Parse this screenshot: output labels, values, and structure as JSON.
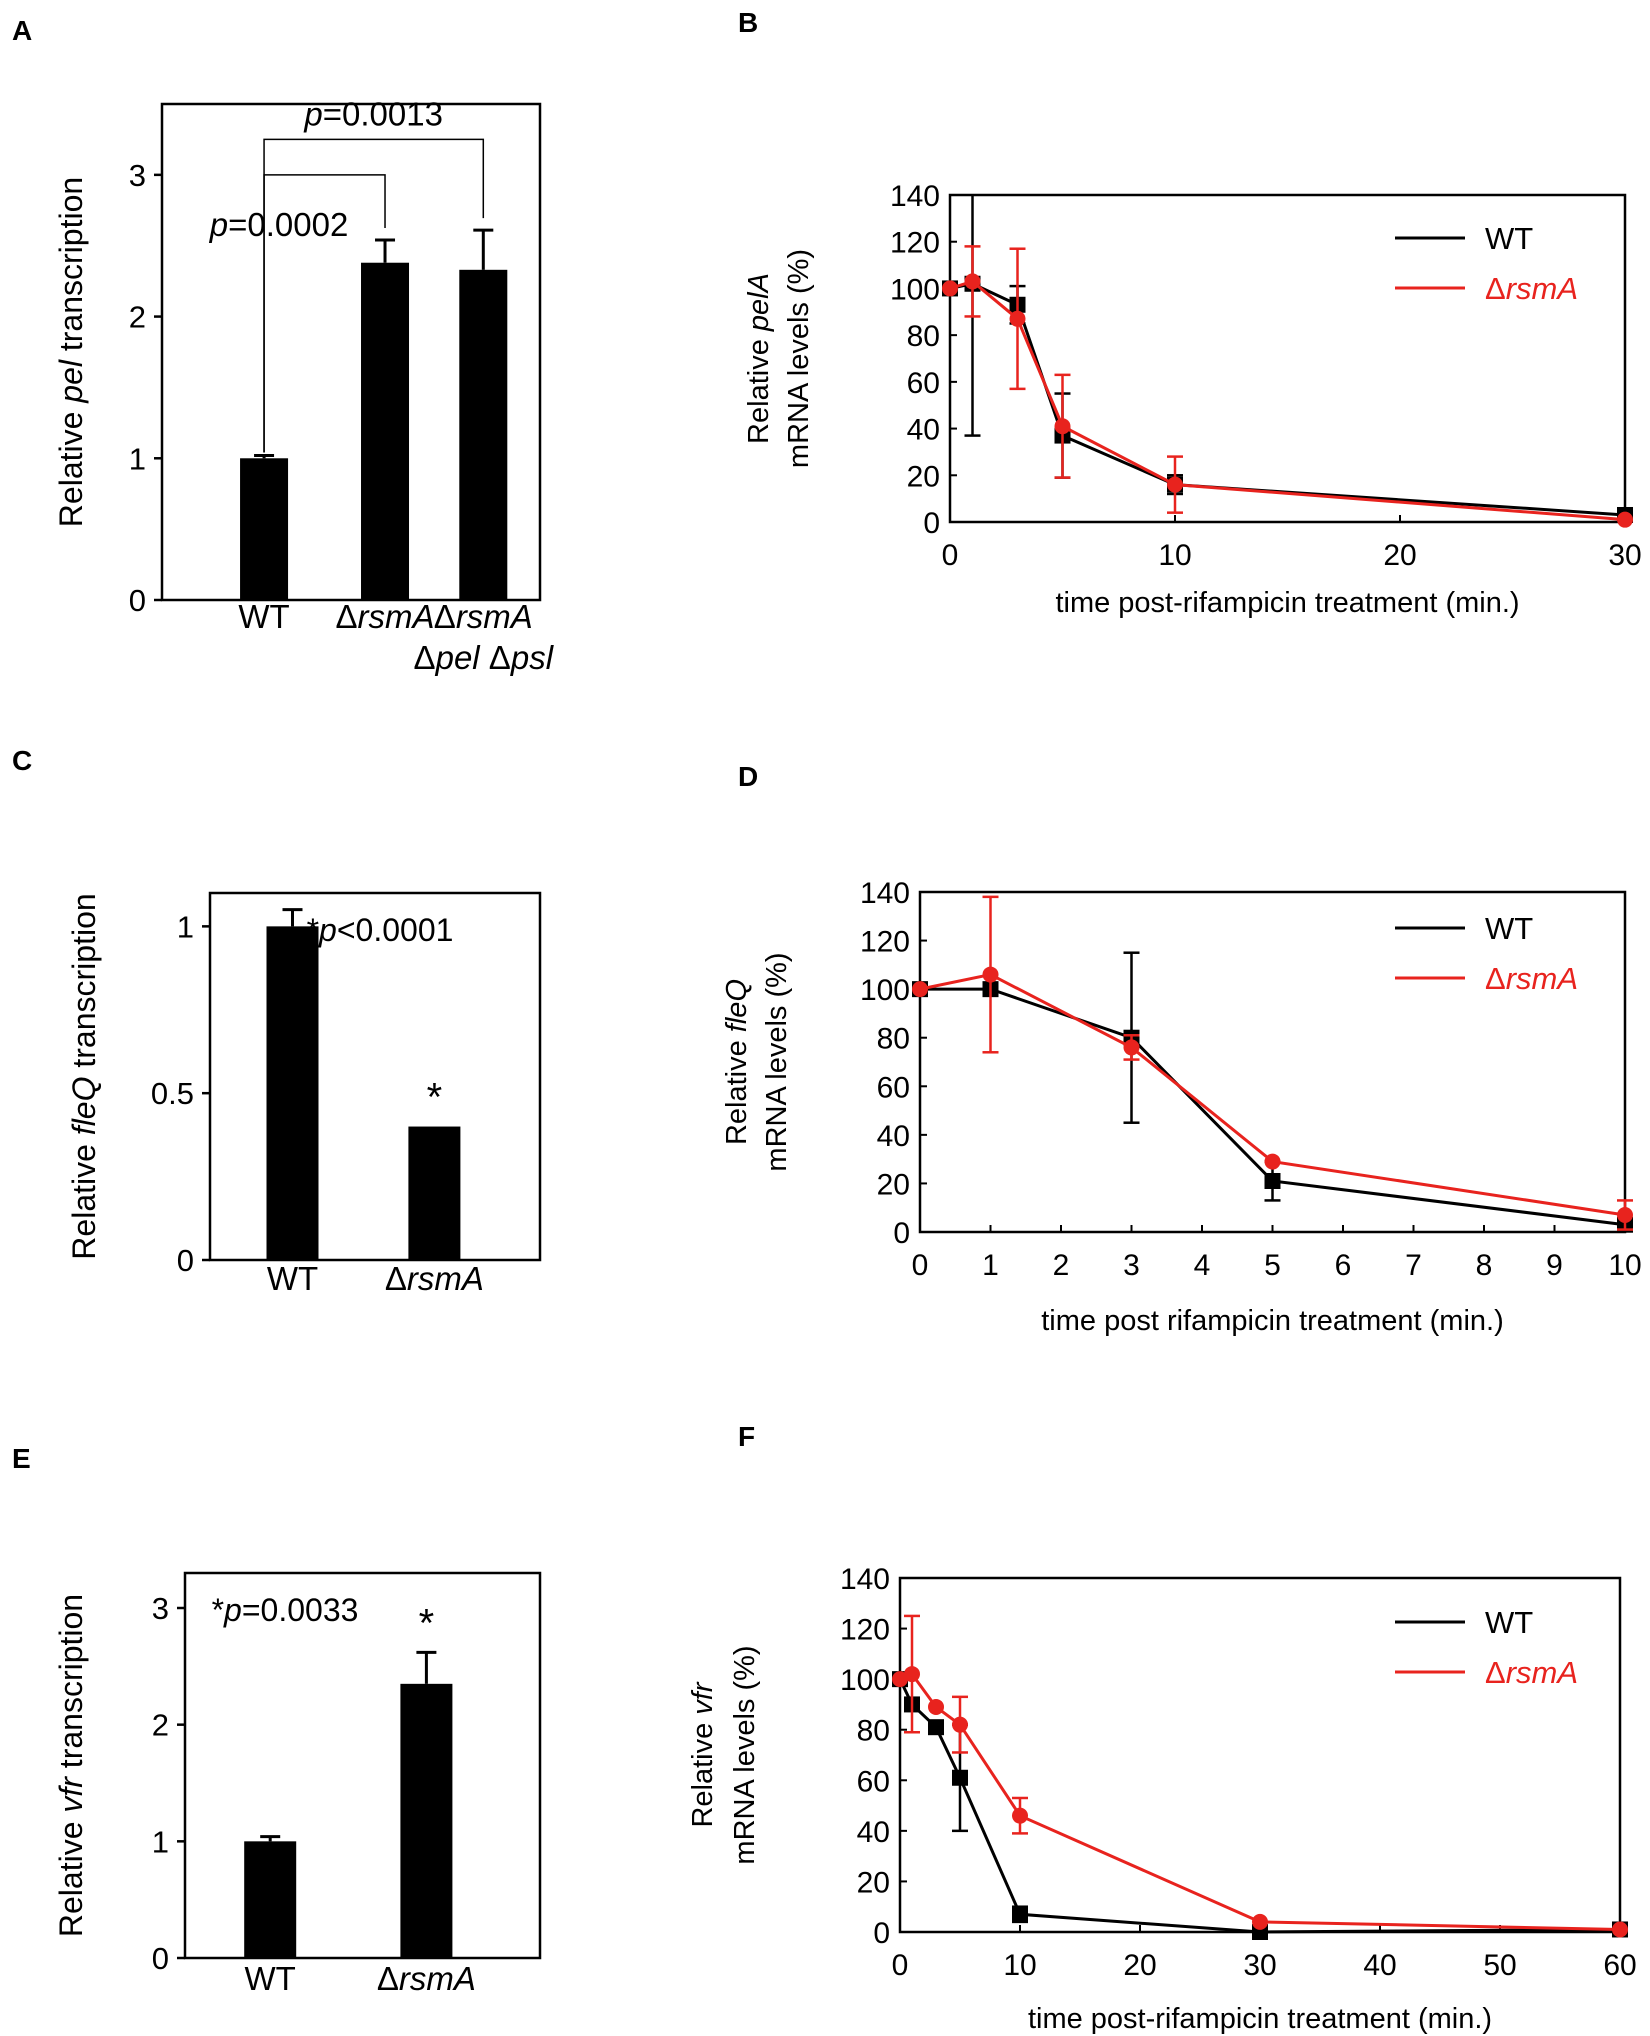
{
  "figure": {
    "colors": {
      "wt": "#000000",
      "rsma": "#e8231e",
      "axis": "#000000"
    }
  },
  "chart_data": [
    {
      "id": "A",
      "panel_label": "A",
      "type": "bar",
      "ylabel_parts": [
        "Relative ",
        "pel",
        " transcription"
      ],
      "ylim": [
        0,
        3.5
      ],
      "yticks": [
        "0",
        "1",
        "2",
        "3"
      ],
      "categories": [
        {
          "lines": [
            [
              {
                "t": "WT",
                "i": false
              }
            ]
          ]
        },
        {
          "lines": [
            [
              {
                "t": "Δ",
                "i": false
              },
              {
                "t": "rsmA",
                "i": true
              }
            ]
          ]
        },
        {
          "lines": [
            [
              {
                "t": "Δ",
                "i": false
              },
              {
                "t": "rsmA",
                "i": true
              }
            ],
            [
              {
                "t": "Δ",
                "i": false
              },
              {
                "t": "pel",
                "i": true
              },
              {
                "t": " Δ",
                "i": false
              },
              {
                "t": "psl",
                "i": true
              }
            ]
          ]
        }
      ],
      "values": [
        1.0,
        2.38,
        2.33
      ],
      "errors": [
        0.02,
        0.16,
        0.28
      ],
      "annotations": [
        {
          "parts": [
            {
              "t": "p",
              "i": true
            },
            {
              "t": "=0.0002",
              "i": false
            }
          ],
          "from": 0,
          "to": 1,
          "level": 3.0
        },
        {
          "parts": [
            {
              "t": "p",
              "i": true
            },
            {
              "t": "=0.0013",
              "i": false
            }
          ],
          "from": 0,
          "to": 2,
          "level": 3.25
        }
      ],
      "stars": []
    },
    {
      "id": "B",
      "panel_label": "B",
      "type": "line",
      "ylabel_line1_parts": [
        "Relative ",
        "pelA"
      ],
      "ylabel_line2": "mRNA levels (%)",
      "xlabel": "time post-rifampicin treatment  (min.)",
      "xlim": [
        0,
        30
      ],
      "ylim": [
        0,
        140
      ],
      "xticks": [
        "0",
        "10",
        "20",
        "30"
      ],
      "yticks": [
        "0",
        "20",
        "40",
        "60",
        "80",
        "100",
        "120",
        "140"
      ],
      "legend": {
        "wt": "WT",
        "rsma_prefix": "Δ",
        "rsma_name": "rsmA"
      },
      "series": [
        {
          "name": "WT",
          "key": "wt",
          "x": [
            0,
            1,
            3,
            5,
            10,
            30
          ],
          "y": [
            100,
            102,
            93,
            37,
            16,
            3
          ],
          "err": [
            0,
            65,
            8,
            18,
            4,
            0
          ]
        },
        {
          "name": "ΔrsmA",
          "key": "rsma",
          "x": [
            0,
            1,
            3,
            5,
            10,
            30
          ],
          "y": [
            100,
            103,
            87,
            41,
            16,
            1
          ],
          "err": [
            0,
            15,
            30,
            22,
            12,
            0
          ]
        }
      ]
    },
    {
      "id": "C",
      "panel_label": "C",
      "type": "bar",
      "ylabel_parts": [
        "Relative ",
        "fleQ",
        " transcription"
      ],
      "ylim": [
        0,
        1.1
      ],
      "yticks": [
        "0",
        "0.5",
        "1"
      ],
      "categories": [
        {
          "lines": [
            [
              {
                "t": "WT",
                "i": false
              }
            ]
          ]
        },
        {
          "lines": [
            [
              {
                "t": "Δ",
                "i": false
              },
              {
                "t": "rsmA",
                "i": true
              }
            ]
          ]
        }
      ],
      "values": [
        1.0,
        0.4
      ],
      "errors": [
        0.05,
        0
      ],
      "annotations": [],
      "corner_note": [
        {
          "t": "*",
          "i": false
        },
        {
          "t": "p",
          "i": true
        },
        {
          "t": "<0.0001",
          "i": false
        }
      ],
      "stars": [
        1
      ]
    },
    {
      "id": "D",
      "panel_label": "D",
      "type": "line",
      "ylabel_line1_parts": [
        "Relative ",
        "fleQ"
      ],
      "ylabel_line2": "mRNA levels (%)",
      "xlabel": "time post rifampicin treatment  (min.)",
      "xlim": [
        0,
        10
      ],
      "ylim": [
        0,
        140
      ],
      "xticks": [
        "0",
        "1",
        "2",
        "3",
        "4",
        "5",
        "6",
        "7",
        "8",
        "9",
        "10"
      ],
      "yticks": [
        "0",
        "20",
        "40",
        "60",
        "80",
        "100",
        "120",
        "140"
      ],
      "legend": {
        "wt": "WT",
        "rsma_prefix": "Δ",
        "rsma_name": "rsmA"
      },
      "series": [
        {
          "name": "WT",
          "key": "wt",
          "x": [
            0,
            1,
            3,
            5,
            10
          ],
          "y": [
            100,
            100,
            80,
            21,
            3
          ],
          "err": [
            0,
            0,
            35,
            8,
            0
          ]
        },
        {
          "name": "ΔrsmA",
          "key": "rsma",
          "x": [
            0,
            1,
            3,
            5,
            10
          ],
          "y": [
            100,
            106,
            76,
            29,
            7
          ],
          "err": [
            0,
            32,
            5,
            0,
            6
          ]
        }
      ]
    },
    {
      "id": "E",
      "panel_label": "E",
      "type": "bar",
      "ylabel_parts": [
        "Relative ",
        "vfr",
        " transcription"
      ],
      "ylim": [
        0,
        3.3
      ],
      "yticks": [
        "0",
        "1",
        "2",
        "3"
      ],
      "categories": [
        {
          "lines": [
            [
              {
                "t": "WT",
                "i": false
              }
            ]
          ]
        },
        {
          "lines": [
            [
              {
                "t": "Δ",
                "i": false
              },
              {
                "t": "rsmA",
                "i": true
              }
            ]
          ]
        }
      ],
      "values": [
        1.0,
        2.35
      ],
      "errors": [
        0.04,
        0.27
      ],
      "annotations": [],
      "corner_note": [
        {
          "t": "*",
          "i": false
        },
        {
          "t": "p",
          "i": true
        },
        {
          "t": "=0.0033",
          "i": false
        }
      ],
      "stars": [
        1
      ]
    },
    {
      "id": "F",
      "panel_label": "F",
      "type": "line",
      "ylabel_line1_parts": [
        "Relative ",
        "vfr"
      ],
      "ylabel_line2": "mRNA levels (%)",
      "xlabel": "time post-rifampicin treatment  (min.)",
      "xlim": [
        0,
        60
      ],
      "ylim": [
        0,
        140
      ],
      "xticks": [
        "0",
        "10",
        "20",
        "30",
        "40",
        "50",
        "60"
      ],
      "yticks": [
        "0",
        "20",
        "40",
        "60",
        "80",
        "100",
        "120",
        "140"
      ],
      "legend": {
        "wt": "WT",
        "rsma_prefix": "Δ",
        "rsma_name": "rsmA"
      },
      "series": [
        {
          "name": "WT",
          "key": "wt",
          "x": [
            0,
            1,
            3,
            5,
            10,
            30,
            60
          ],
          "y": [
            100,
            90,
            81,
            61,
            7,
            0,
            1
          ],
          "err": [
            0,
            0,
            0,
            21,
            3,
            0,
            0
          ]
        },
        {
          "name": "ΔrsmA",
          "key": "rsma",
          "x": [
            0,
            1,
            3,
            5,
            10,
            30,
            60
          ],
          "y": [
            100,
            102,
            89,
            82,
            46,
            4,
            1
          ],
          "err": [
            0,
            23,
            0,
            11,
            7,
            0,
            0
          ]
        }
      ]
    }
  ]
}
